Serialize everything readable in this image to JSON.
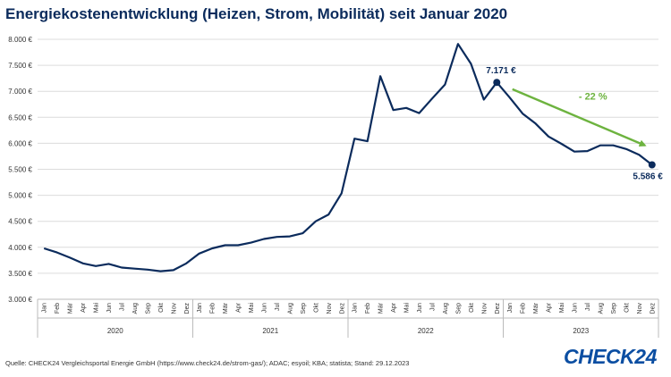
{
  "title": "Energiekostenentwicklung (Heizen, Strom, Mobilität) seit Januar 2020",
  "source": "Quelle: CHECK24 Vergleichsportal Energie GmbH (https://www.check24.de/strom-gas/); ADAC; esyoil; KBA; statista; Stand: 29.12.2023",
  "logo_text": "CHECK24",
  "chart_data": {
    "type": "line",
    "title": "Energiekostenentwicklung (Heizen, Strom, Mobilität) seit Januar 2020",
    "ylim": [
      3000,
      8000
    ],
    "y_ticks": [
      3000,
      3500,
      4000,
      4500,
      5000,
      5500,
      6000,
      6500,
      7000,
      7500,
      8000
    ],
    "y_tick_labels": [
      "3.000 €",
      "3.500 €",
      "4.000 €",
      "4.500 €",
      "5.000 €",
      "5.500 €",
      "6.000 €",
      "6.500 €",
      "7.000 €",
      "7.500 €",
      "8.000 €"
    ],
    "grid": true,
    "years": [
      "2020",
      "2021",
      "2022",
      "2023"
    ],
    "months": [
      "Jan",
      "Feb",
      "Mär",
      "Apr",
      "Mai",
      "Jun",
      "Jul",
      "Aug",
      "Sep",
      "Okt",
      "Nov",
      "Dez"
    ],
    "line_color": "#0b2b5c",
    "values": [
      3980,
      3900,
      3800,
      3690,
      3640,
      3680,
      3610,
      3590,
      3570,
      3540,
      3560,
      3690,
      3880,
      3980,
      4040,
      4040,
      4090,
      4160,
      4200,
      4210,
      4270,
      4500,
      4630,
      5040,
      6090,
      6040,
      7290,
      6640,
      6680,
      6580,
      6860,
      7130,
      7910,
      7530,
      6840,
      7171,
      6880,
      6570,
      6380,
      6130,
      5990,
      5840,
      5850,
      5960,
      5960,
      5890,
      5780,
      5586
    ],
    "annotations": [
      {
        "label": "7.171 €",
        "index": 35,
        "value": 7171
      },
      {
        "label": "5.586 €",
        "index": 47,
        "value": 5586
      },
      {
        "label": "- 22 %",
        "from_index": 36,
        "to_index": 47,
        "color": "#6db33f"
      }
    ]
  }
}
